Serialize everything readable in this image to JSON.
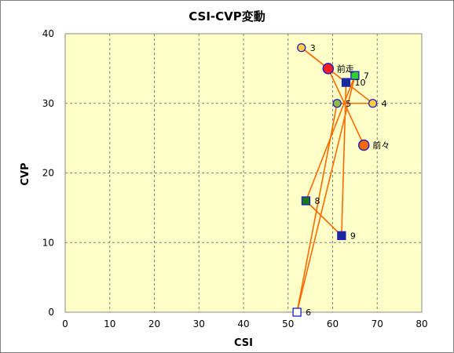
{
  "chart_data": {
    "type": "scatter",
    "title": "CSI-CVP変動",
    "xlabel": "CSI",
    "ylabel": "CVP",
    "xlim": [
      0,
      80
    ],
    "ylim": [
      0,
      40
    ],
    "xticks": [
      0,
      10,
      20,
      30,
      40,
      50,
      60,
      70,
      80
    ],
    "yticks": [
      0,
      10,
      20,
      30,
      40
    ],
    "grid": true,
    "plot_background": "#ffffc8",
    "line_color": "#ff6a00",
    "points": [
      {
        "label": "前々",
        "x": 67,
        "y": 24,
        "marker": "circle-large",
        "fill": "#ff6a00",
        "stroke": "#1f1fbf"
      },
      {
        "label": "前走",
        "x": 59,
        "y": 35,
        "marker": "circle-large",
        "fill": "#ff1e1e",
        "stroke": "#1f1fbf"
      },
      {
        "label": "3",
        "x": 53,
        "y": 38,
        "marker": "circle",
        "fill": "#ffcc44",
        "stroke": "#1f1fbf"
      },
      {
        "label": "4",
        "x": 69,
        "y": 30,
        "marker": "circle",
        "fill": "#ffcc44",
        "stroke": "#1f1fbf"
      },
      {
        "label": "5",
        "x": 61,
        "y": 30,
        "marker": "circle",
        "fill": "#8fbc3f",
        "stroke": "#1f1fbf"
      },
      {
        "label": "6",
        "x": 52,
        "y": 0,
        "marker": "square",
        "fill": "#ffffff",
        "stroke": "#1f1fbf"
      },
      {
        "label": "7",
        "x": 65,
        "y": 34,
        "marker": "square",
        "fill": "#33cc33",
        "stroke": "#1f1fbf"
      },
      {
        "label": "8",
        "x": 54,
        "y": 16,
        "marker": "square",
        "fill": "#1a7a1a",
        "stroke": "#1f1fbf"
      },
      {
        "label": "9",
        "x": 62,
        "y": 11,
        "marker": "square",
        "fill": "#1a2a9a",
        "stroke": "#1f1fbf"
      },
      {
        "label": "10",
        "x": 63,
        "y": 33,
        "marker": "square",
        "fill": "#1a2a9a",
        "stroke": "#1f1fbf"
      }
    ],
    "path_order": [
      "10",
      "9",
      "8",
      "7",
      "6",
      "5",
      "4",
      "3",
      "前走",
      "前々"
    ]
  }
}
